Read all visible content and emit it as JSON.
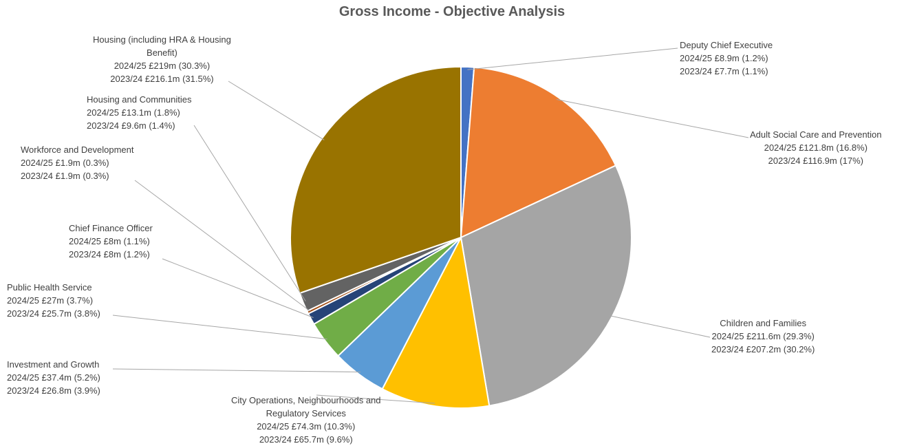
{
  "chart_data": {
    "type": "pie",
    "title": "Gross Income - Objective Analysis",
    "slices": [
      {
        "name": "Deputy Chief Executive",
        "value": 8.9,
        "color": "#4472C4",
        "lines": [
          "Deputy Chief Executive",
          "2024/25 £8.9m (1.2%)",
          "2023/24 £7.7m (1.1%)"
        ]
      },
      {
        "name": "Adult Social Care and Prevention",
        "value": 121.8,
        "color": "#ED7D31",
        "lines": [
          "Adult Social Care and Prevention",
          "2024/25 £121.8m (16.8%)",
          "2023/24 £116.9m (17%)"
        ]
      },
      {
        "name": "Children and Families",
        "value": 211.6,
        "color": "#A5A5A5",
        "lines": [
          "Children and Families",
          "2024/25 £211.6m (29.3%)",
          "2023/24 £207.2m (30.2%)"
        ]
      },
      {
        "name": "City Operations, Neighbourhoods and Regulatory Services",
        "value": 74.3,
        "color": "#FFC000",
        "lines": [
          "City Operations, Neighbourhoods and",
          "Regulatory Services",
          "2024/25 £74.3m (10.3%)",
          "2023/24 £65.7m (9.6%)"
        ]
      },
      {
        "name": "Investment and Growth",
        "value": 37.4,
        "color": "#5B9BD5",
        "lines": [
          "Investment and Growth",
          "2024/25 £37.4m (5.2%)",
          "2023/24 £26.8m (3.9%)"
        ]
      },
      {
        "name": "Public Health Service",
        "value": 27,
        "color": "#70AD47",
        "lines": [
          "Public Health Service",
          "2024/25 £27m (3.7%)",
          "2023/24 £25.7m (3.8%)"
        ]
      },
      {
        "name": "Chief Finance Officer",
        "value": 8,
        "color": "#264478",
        "lines": [
          "Chief Finance Officer",
          "2024/25 £8m (1.1%)",
          "2023/24 £8m (1.2%)"
        ]
      },
      {
        "name": "Workforce and Development",
        "value": 1.9,
        "color": "#9E480E",
        "lines": [
          "Workforce and Development",
          "2024/25 £1.9m (0.3%)",
          "2023/24 £1.9m (0.3%)"
        ]
      },
      {
        "name": "Housing and Communities",
        "value": 13.1,
        "color": "#636363",
        "lines": [
          "Housing and Communities",
          "2024/25 £13.1m (1.8%)",
          "2023/24 £9.6m (1.4%)"
        ]
      },
      {
        "name": "Housing (including HRA & Housing Benefit)",
        "value": 219,
        "color": "#997300",
        "lines": [
          "Housing (including HRA & Housing",
          "Benefit)",
          "2024/25 £219m (30.3%)",
          "2023/24 £216.1m (31.5%)"
        ]
      }
    ]
  }
}
